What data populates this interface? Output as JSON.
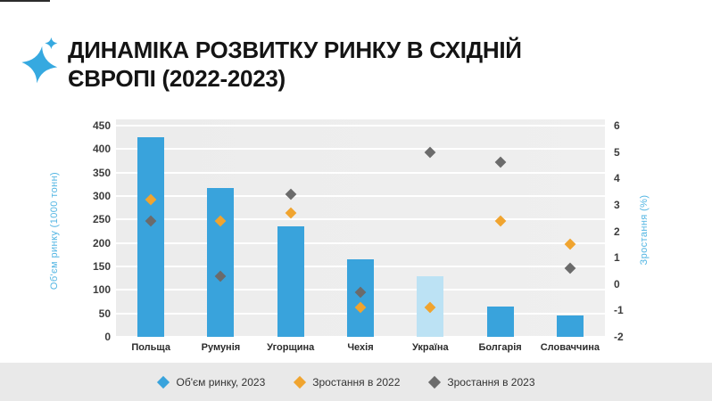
{
  "slide": {
    "title": "ДИНАМІКА РОЗВИТКУ РИНКУ В СХІДНІЙ ЄВРОПІ (2022-2023)",
    "title_lines": [
      "ДИНАМІКА РОЗВИТКУ РИНКУ В СХІДНІЙ",
      "ЄВРОПІ (2022-2023)"
    ],
    "accent_color": "#36a9e0"
  },
  "chart_data": {
    "type": "bar",
    "title": "",
    "categories": [
      "Польща",
      "Румунія",
      "Угорщина",
      "Чехія",
      "Україна",
      "Болгарія",
      "Словаччина"
    ],
    "series": [
      {
        "name": "Об'єм ринку, 2023",
        "mark": "bar",
        "axis": "left",
        "values": [
          425,
          318,
          235,
          165,
          130,
          65,
          45
        ],
        "color": "#39a3dc",
        "highlight_index": 4,
        "highlight_color": "#bce2f4"
      },
      {
        "name": "Зростання в 2022",
        "mark": "diamond",
        "axis": "right",
        "values": [
          3.2,
          2.4,
          2.7,
          -0.9,
          -0.9,
          2.4,
          1.5
        ],
        "color": "#f0a42f"
      },
      {
        "name": "Зростання в 2023",
        "mark": "diamond",
        "axis": "right",
        "values": [
          2.4,
          0.3,
          3.4,
          -0.3,
          5.0,
          4.6,
          0.6
        ],
        "color": "#6b6b6b"
      }
    ],
    "left_axis": {
      "label": "Об'єм ринку (1000 тонн)",
      "min": 0,
      "max": 450,
      "step": 50,
      "ticks": [
        0,
        50,
        100,
        150,
        200,
        250,
        300,
        350,
        400,
        450
      ]
    },
    "right_axis": {
      "label": "Зростання (%)",
      "min": -2,
      "max": 6,
      "step": 1,
      "ticks": [
        -2,
        -1,
        0,
        1,
        2,
        3,
        4,
        5,
        6
      ]
    },
    "legend_position": "bottom",
    "grid": true,
    "plot_bg": "#ececec",
    "gridline_color": "#ffffff"
  }
}
